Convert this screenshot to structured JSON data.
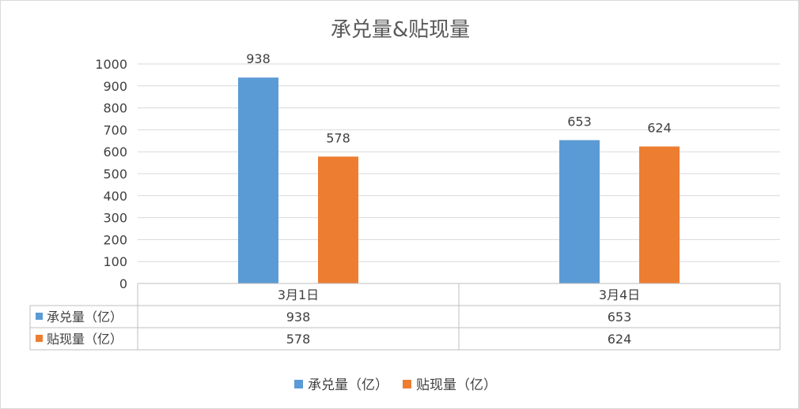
{
  "chart_data": {
    "type": "bar",
    "title": "承兑量&贴现量",
    "categories": [
      "3月1日",
      "3月4日"
    ],
    "series": [
      {
        "name": "承兑量（亿）",
        "values": [
          938,
          653
        ],
        "color": "#5B9BD5"
      },
      {
        "name": "贴现量（亿）",
        "values": [
          578,
          624
        ],
        "color": "#ED7D31"
      }
    ],
    "ylim": [
      0,
      1000
    ],
    "yticks": [
      0,
      100,
      200,
      300,
      400,
      500,
      600,
      700,
      800,
      900,
      1000
    ],
    "grid": true,
    "legend": "bottom",
    "data_table": true
  }
}
